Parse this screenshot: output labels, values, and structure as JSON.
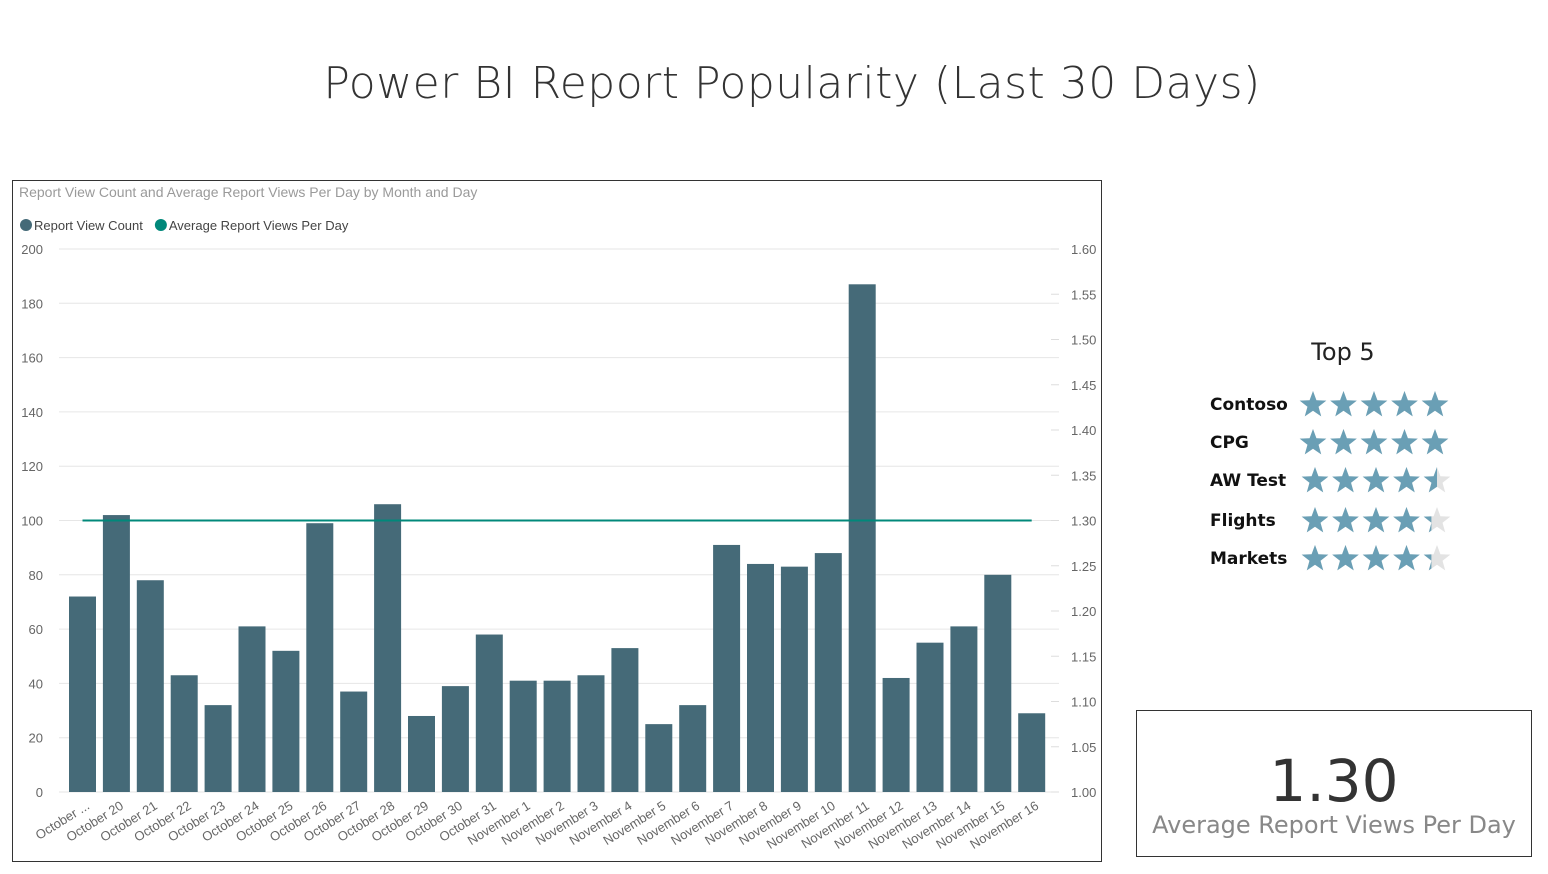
{
  "page": {
    "title": "Power BI Report Popularity (Last 30 Days)"
  },
  "chart_data": {
    "type": "bar",
    "title": "Report View Count and Average Report Views Per Day by Month and Day",
    "categories": [
      "October ...",
      "October 20",
      "October 21",
      "October 22",
      "October 23",
      "October 24",
      "October 25",
      "October 26",
      "October 27",
      "October 28",
      "October 29",
      "October 30",
      "October 31",
      "November 1",
      "November 2",
      "November 3",
      "November 4",
      "November 5",
      "November 6",
      "November 7",
      "November 8",
      "November 9",
      "November 10",
      "November 11",
      "November 12",
      "November 13",
      "November 14",
      "November 15",
      "November 16"
    ],
    "series": [
      {
        "name": "Report View Count",
        "type": "bar",
        "axis": "left",
        "color": "#456a78",
        "values": [
          72,
          102,
          78,
          43,
          32,
          61,
          52,
          99,
          37,
          106,
          28,
          39,
          58,
          41,
          41,
          43,
          53,
          25,
          32,
          91,
          84,
          83,
          88,
          187,
          42,
          55,
          61,
          80,
          29
        ]
      },
      {
        "name": "Average Report Views Per Day",
        "type": "line",
        "axis": "right",
        "color": "#01887a",
        "values": [
          1.3,
          1.3,
          1.3,
          1.3,
          1.3,
          1.3,
          1.3,
          1.3,
          1.3,
          1.3,
          1.3,
          1.3,
          1.3,
          1.3,
          1.3,
          1.3,
          1.3,
          1.3,
          1.3,
          1.3,
          1.3,
          1.3,
          1.3,
          1.3,
          1.3,
          1.3,
          1.3,
          1.3,
          1.3
        ]
      }
    ],
    "y_left": {
      "min": 0,
      "max": 200,
      "ticks": [
        "0",
        "20",
        "40",
        "60",
        "80",
        "100",
        "120",
        "140",
        "160",
        "180",
        "200"
      ]
    },
    "y_right": {
      "min": 1.0,
      "max": 1.6,
      "ticks": [
        "1.00",
        "1.05",
        "1.10",
        "1.15",
        "1.20",
        "1.25",
        "1.30",
        "1.35",
        "1.40",
        "1.45",
        "1.50",
        "1.55",
        "1.60"
      ]
    },
    "grid": true,
    "legend_position": "top-left"
  },
  "top5": {
    "title": "Top 5",
    "star_color": "#6a9fb5",
    "empty_star_color": "#e3e3e3",
    "items": [
      {
        "name": "Contoso",
        "rating": 5
      },
      {
        "name": "CPG",
        "rating": 5
      },
      {
        "name": "AW Test",
        "rating": 4.5
      },
      {
        "name": "Flights",
        "rating": 4.3
      },
      {
        "name": "Markets",
        "rating": 4.3
      }
    ]
  },
  "card": {
    "value": "1.30",
    "label": "Average Report Views Per Day"
  }
}
